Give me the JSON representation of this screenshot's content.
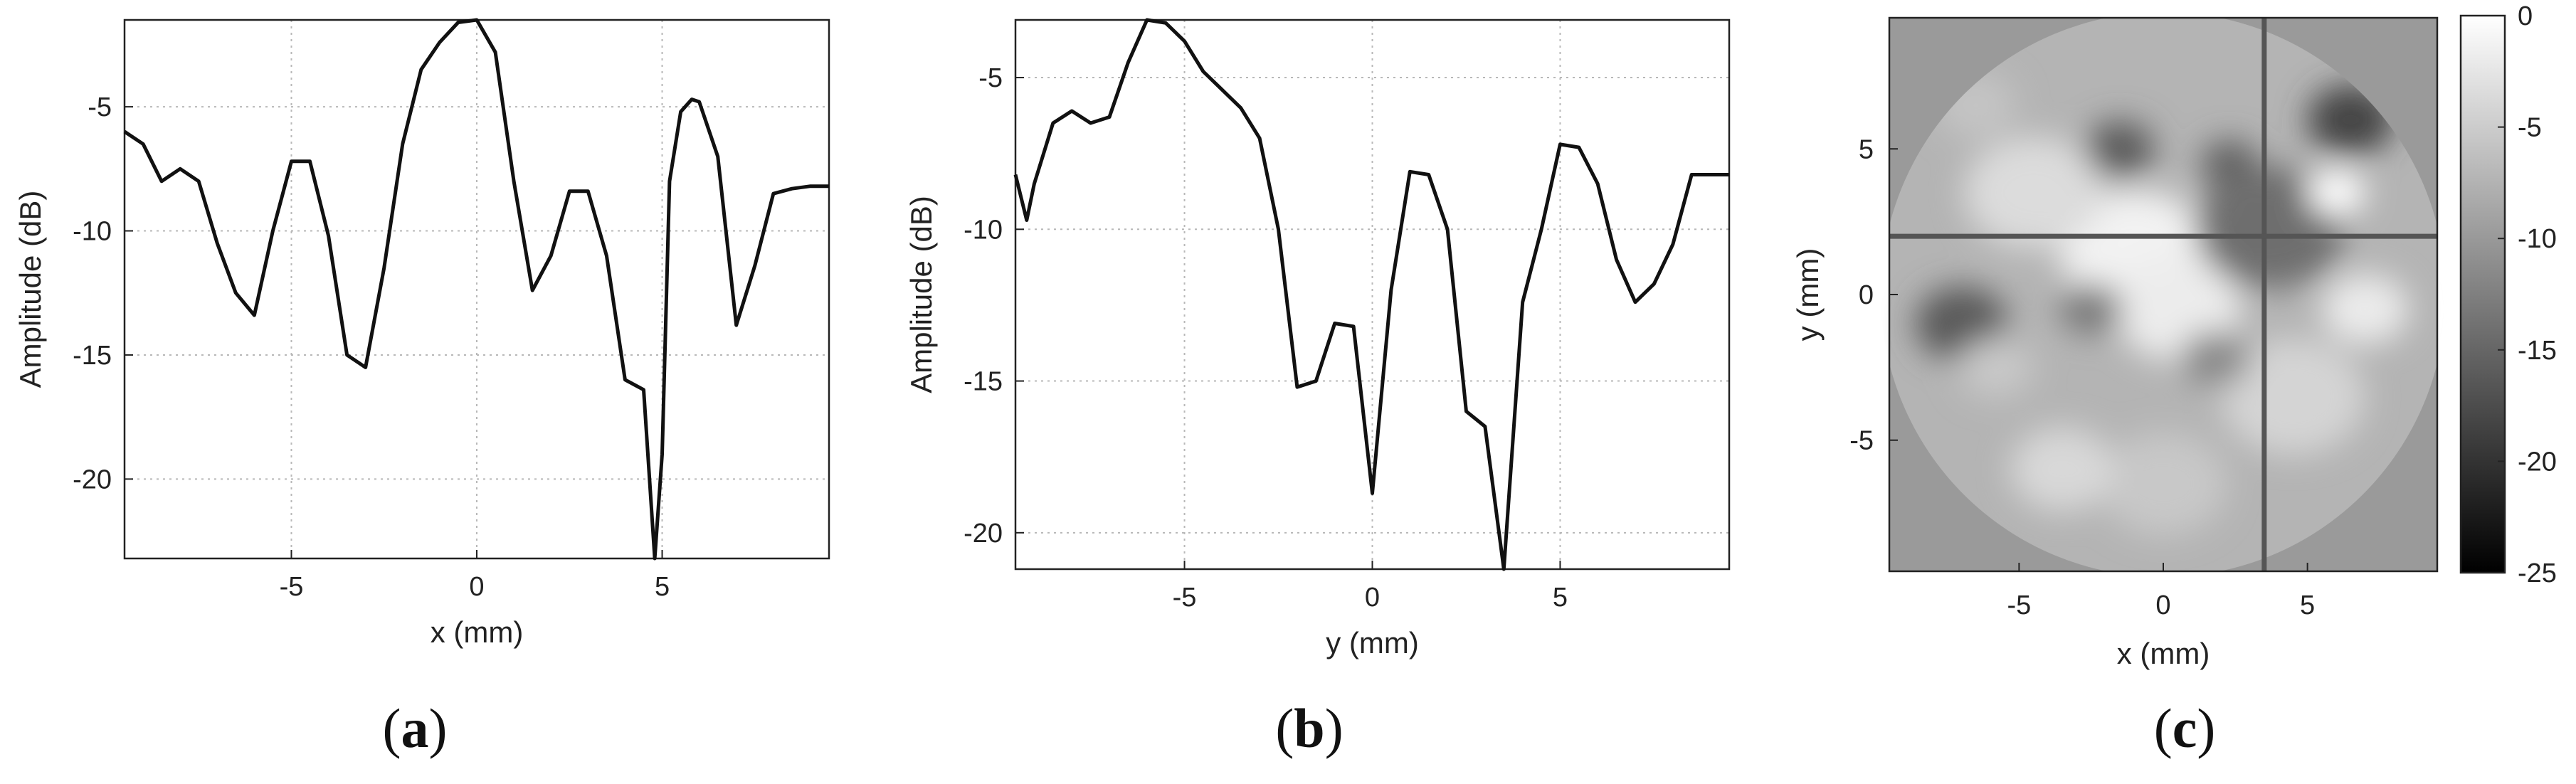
{
  "chart_data": [
    {
      "type": "line",
      "panel_label": "(a)",
      "panel_letter": "a",
      "xlabel": "x (mm)",
      "ylabel": "Amplitude (dB)",
      "xlim": [
        -9.5,
        9.5
      ],
      "ylim": [
        -23.2,
        -1.5
      ],
      "xticks": [
        -5,
        0,
        5
      ],
      "yticks": [
        -5,
        -10,
        -15,
        -20
      ],
      "grid": true,
      "series": [
        {
          "x": [
            -9.5,
            -9,
            -8.5,
            -8,
            -7.5,
            -7,
            -6.5,
            -6,
            -5.5,
            -5,
            -4.5,
            -4,
            -3.5,
            -3,
            -2.5,
            -2,
            -1.5,
            -1,
            -0.5,
            0,
            0.5,
            1,
            1.5,
            2,
            2.5,
            3,
            3.5,
            4,
            4.5,
            4.8,
            5,
            5.2,
            5.5,
            5.8,
            6,
            6.5,
            7,
            7.5,
            8,
            8.5,
            9,
            9.5
          ],
          "y": [
            -6,
            -6.5,
            -8,
            -7.5,
            -8,
            -10.5,
            -12.5,
            -13.4,
            -10,
            -7.2,
            -7.2,
            -10.2,
            -15,
            -15.5,
            -11.5,
            -6.5,
            -3.5,
            -2.4,
            -1.6,
            -1.5,
            -2.8,
            -8,
            -12.4,
            -11,
            -8.4,
            -8.4,
            -11,
            -16,
            -16.4,
            -23.2,
            -19,
            -8,
            -5.2,
            -4.7,
            -4.8,
            -7,
            -13.8,
            -11.4,
            -8.5,
            -8.3,
            -8.2,
            -8.2
          ]
        }
      ]
    },
    {
      "type": "line",
      "panel_label": "(b)",
      "panel_letter": "b",
      "xlabel": "y (mm)",
      "ylabel": "Amplitude (dB)",
      "xlim": [
        -9.5,
        9.5
      ],
      "ylim": [
        -21.2,
        -3.1
      ],
      "xticks": [
        -5,
        0,
        5
      ],
      "yticks": [
        -5,
        -10,
        -15,
        -20
      ],
      "grid": true,
      "series": [
        {
          "x": [
            -9.5,
            -9.2,
            -9,
            -8.5,
            -8,
            -7.5,
            -7,
            -6.5,
            -6,
            -5.5,
            -5,
            -4.5,
            -4,
            -3.5,
            -3,
            -2.5,
            -2,
            -1.5,
            -1,
            -0.5,
            0,
            0.5,
            1,
            1.5,
            2,
            2.5,
            3,
            3.5,
            4,
            4.5,
            5,
            5.5,
            6,
            6.5,
            7,
            7.5,
            8,
            8.5,
            9,
            9.5
          ],
          "y": [
            -8.2,
            -9.7,
            -8.5,
            -6.5,
            -6.1,
            -6.5,
            -6.3,
            -4.5,
            -3.1,
            -3.2,
            -3.8,
            -4.8,
            -5.4,
            -6,
            -7,
            -10,
            -15.2,
            -15,
            -13.1,
            -13.2,
            -18.7,
            -12,
            -8.1,
            -8.2,
            -10,
            -16,
            -16.5,
            -21.2,
            -12.4,
            -10,
            -7.2,
            -7.3,
            -8.5,
            -11,
            -12.4,
            -11.8,
            -10.5,
            -8.2,
            -8.2,
            -8.2
          ]
        }
      ]
    },
    {
      "type": "heatmap",
      "panel_label": "(c)",
      "panel_letter": "c",
      "xlabel": "x (mm)",
      "ylabel": "y (mm)",
      "xlim": [
        -9.5,
        9.5
      ],
      "ylim": [
        -9.5,
        9.5
      ],
      "xticks": [
        -5,
        0,
        5
      ],
      "yticks": [
        5,
        0,
        -5
      ],
      "colorbar_ticks": [
        0,
        -5,
        -10,
        -15,
        -20,
        -25
      ],
      "clim": [
        -25,
        0
      ],
      "colormap": "gray",
      "crosshair": {
        "x": 3.5,
        "y": 2.0
      }
    }
  ]
}
